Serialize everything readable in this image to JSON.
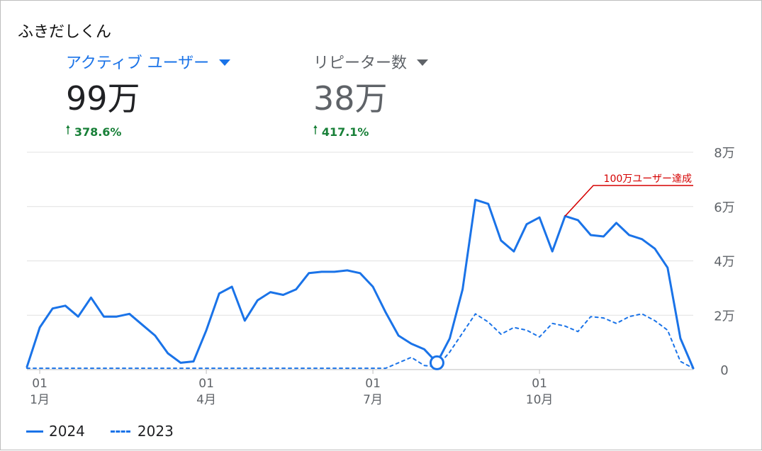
{
  "header": {
    "app_title": "ふきだしくん"
  },
  "metrics": [
    {
      "label": "アクティブ ユーザー",
      "value": "99万",
      "change": "378.6%"
    },
    {
      "label": "リピーター数",
      "value": "38万",
      "change": "417.1%"
    }
  ],
  "icons": {
    "change": "arrow-up-icon",
    "metric_menu": "caret-down-icon"
  },
  "colors": {
    "series": "#1a73e8",
    "positive": "#188038",
    "annotation": "#d50000"
  },
  "chart_data": {
    "type": "line",
    "x_ticks": [
      {
        "day": "01",
        "month": "1月",
        "x": 1
      },
      {
        "day": "01",
        "month": "4月",
        "x": 14
      },
      {
        "day": "01",
        "month": "7月",
        "x": 27
      },
      {
        "day": "01",
        "month": "10月",
        "x": 40
      }
    ],
    "y_ticks": [
      "0",
      "2万",
      "4万",
      "6万",
      "8万"
    ],
    "y_tick_values": [
      0,
      20000,
      40000,
      60000,
      80000
    ],
    "ylim": [
      0,
      80000
    ],
    "xlim": [
      0,
      52
    ],
    "grid": true,
    "legend_position": "bottom-left",
    "series": [
      {
        "name": "2024",
        "style": "solid",
        "values": [
          1000,
          15500,
          22500,
          23500,
          19500,
          26500,
          19500,
          19500,
          20500,
          16500,
          12500,
          6000,
          2500,
          3000,
          14500,
          28000,
          30500,
          18000,
          25500,
          28500,
          27500,
          29500,
          35500,
          36000,
          36000,
          36500,
          35500,
          30500,
          21000,
          12500,
          9500,
          7500,
          2500,
          11500,
          29500,
          62500,
          61000,
          47500,
          43500,
          53500,
          56000,
          43500,
          56500,
          55000,
          49500,
          49000,
          54000,
          49500,
          48000,
          44500,
          37500,
          11500,
          500
        ]
      },
      {
        "name": "2023",
        "style": "dashed",
        "values": [
          500,
          500,
          500,
          500,
          500,
          500,
          500,
          500,
          500,
          500,
          500,
          500,
          500,
          500,
          500,
          500,
          500,
          500,
          500,
          500,
          500,
          500,
          500,
          500,
          500,
          500,
          500,
          500,
          500,
          2500,
          4500,
          1500,
          1000,
          6500,
          13500,
          20500,
          17500,
          13000,
          15500,
          14500,
          12000,
          17000,
          16000,
          14000,
          19500,
          19000,
          17000,
          19500,
          20500,
          18000,
          14500,
          3000,
          500
        ]
      }
    ],
    "highlight_point": {
      "x": 32,
      "y": 2500
    },
    "annotation": {
      "text": "100万ユーザー達成",
      "x": 42,
      "y": 56500
    }
  }
}
